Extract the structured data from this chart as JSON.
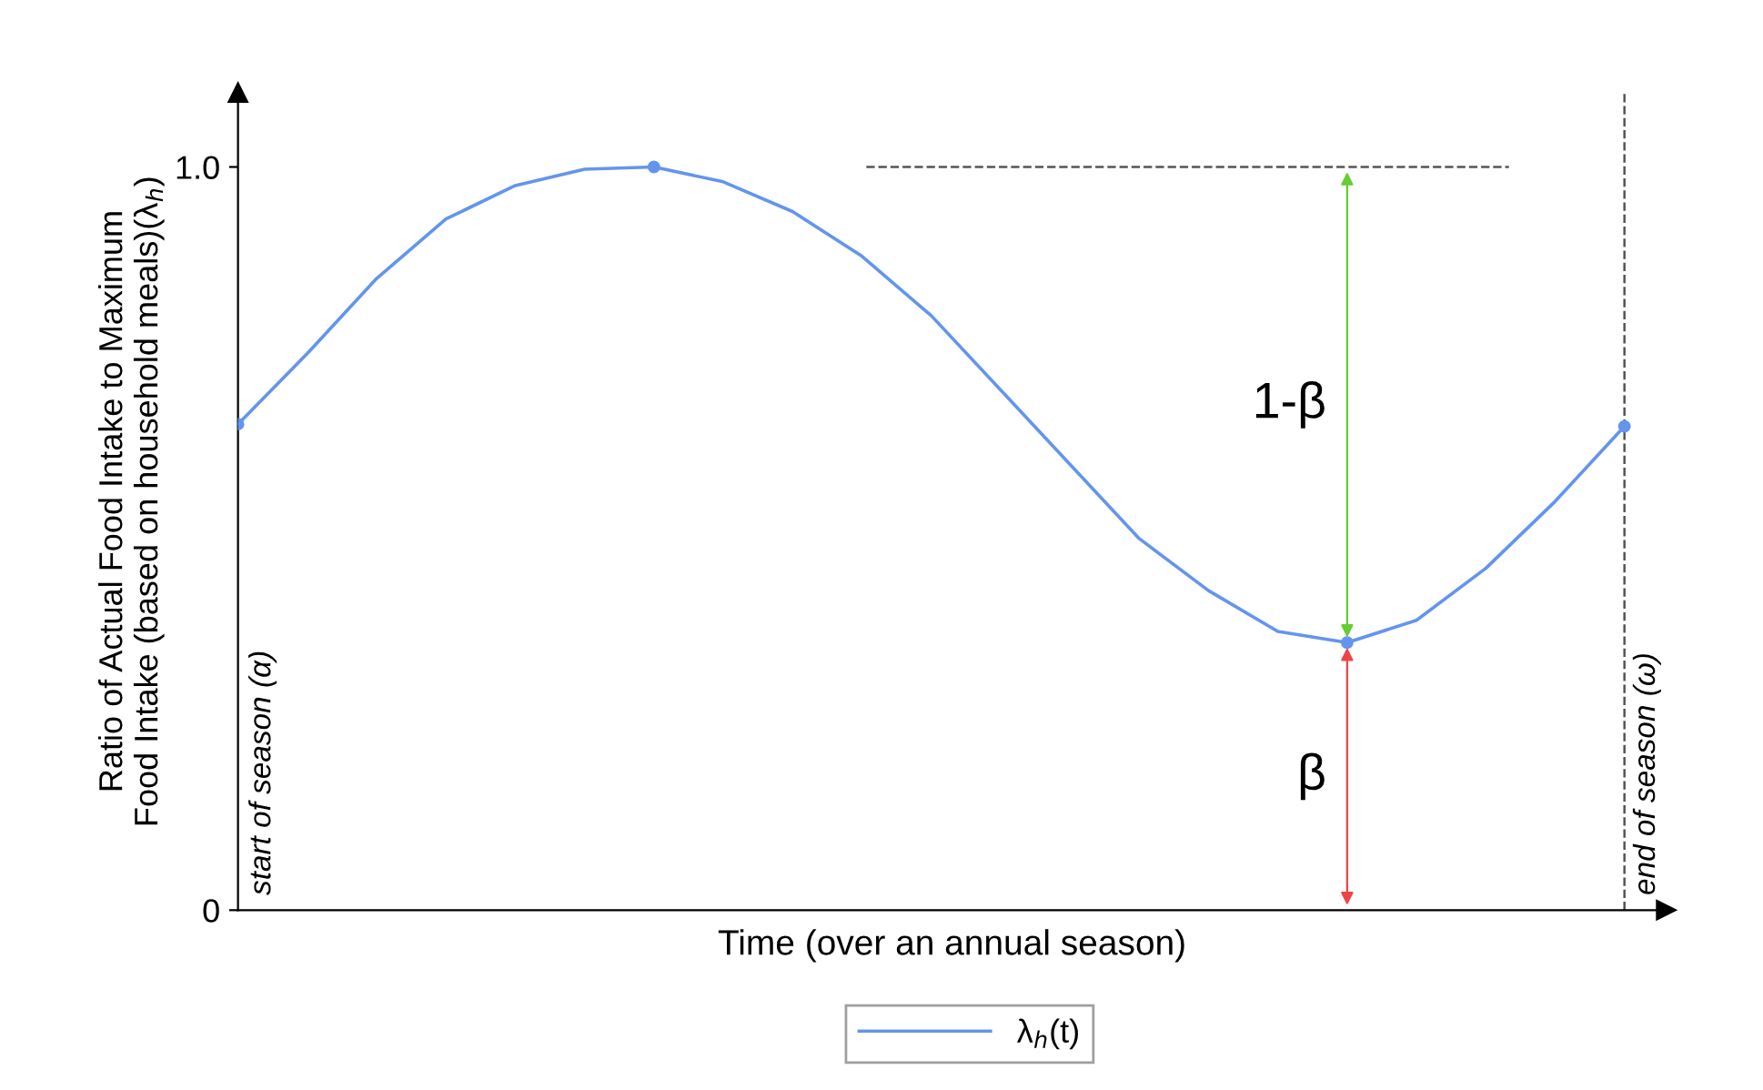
{
  "chart_data": {
    "type": "line",
    "xlabel": "Time (over an annual season)",
    "ylabel": "Ratio of Actual Food Intake to Maximum\nFood Intake (based on household meals)(λ$_{h}$)",
    "categories": [
      null,
      null,
      null,
      null,
      null,
      null,
      null,
      null,
      null,
      null,
      null,
      null,
      null,
      null,
      null,
      null,
      null,
      null,
      null,
      null,
      null
    ],
    "ylim": [
      0,
      1.1
    ],
    "yticks": [
      0,
      {
        "value": 1.0,
        "label": "1.0"
      }
    ],
    "grid": false,
    "legend": "bottom",
    "line_style": "solid",
    "series": [
      {
        "name": "λ$_{h}$(t)",
        "color": "#6495ed",
        "values": [
          0.654,
          0.749,
          0.85,
          0.93,
          0.975,
          0.997,
          1.0,
          0.98,
          0.94,
          0.88,
          0.8,
          0.7,
          0.6,
          0.5,
          0.43,
          0.375,
          0.36,
          0.39,
          0.46,
          0.55,
          0.651
        ]
      }
    ],
    "ref_lines": [
      {
        "axis": "y",
        "value": 1.0,
        "color": "#555555",
        "line_style": "dashed"
      },
      {
        "axis": "x",
        "label": "end of season (ω)",
        "color": "#555555",
        "line_style": "dashed"
      }
    ],
    "annotations": [
      "1-β",
      "β",
      "start of season (α)"
    ]
  }
}
